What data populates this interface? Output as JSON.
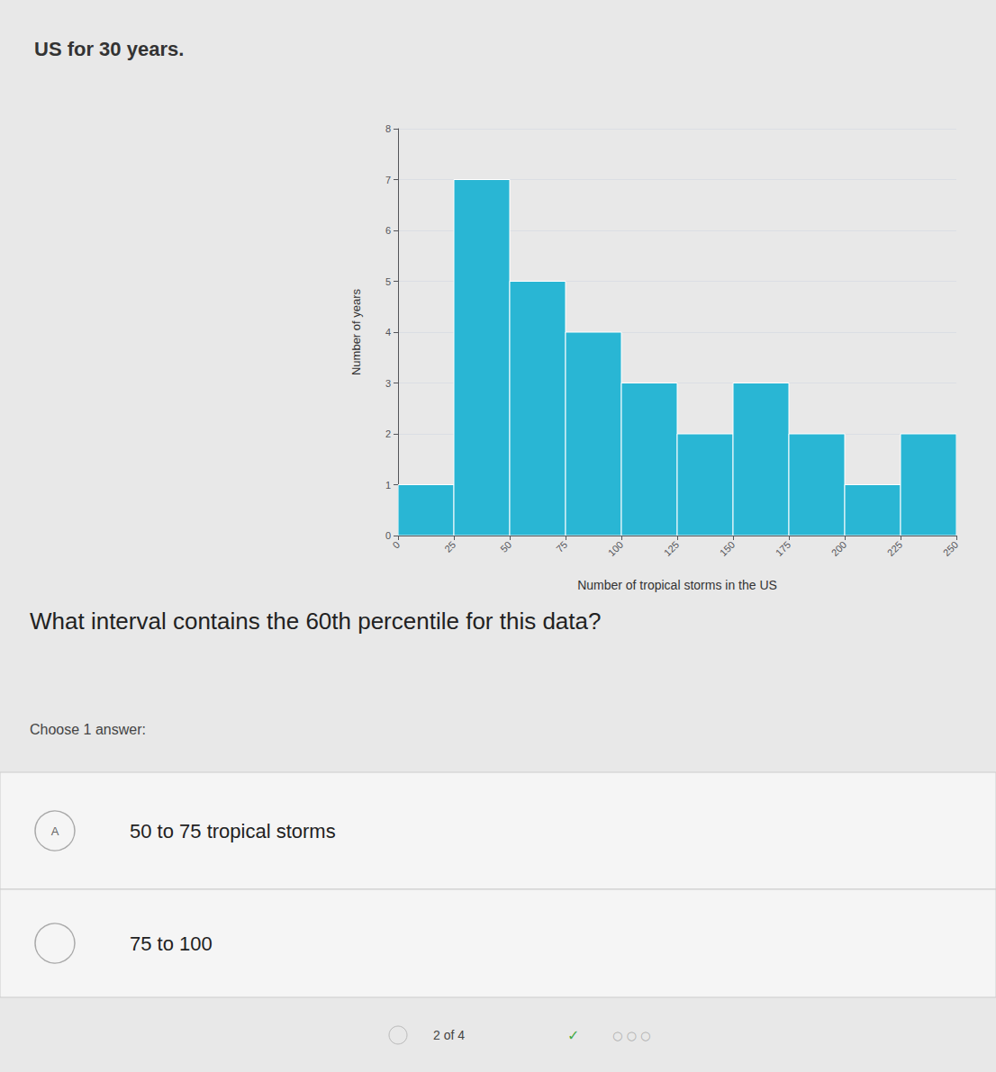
{
  "chart_data": {
    "type": "histogram",
    "title": "US for 30 years.",
    "bins": [
      0,
      25,
      50,
      75,
      100,
      125,
      150,
      175,
      200,
      225,
      250
    ],
    "values": [
      1,
      7,
      5,
      4,
      3,
      2,
      3,
      2,
      1,
      2
    ],
    "color": "#29b6d4",
    "xlabel": "Number of tropical storms in the US",
    "ylabel": "Number of years",
    "xlim": [
      0,
      250
    ],
    "xticks": [
      0,
      25,
      50,
      75,
      100,
      125,
      150,
      175,
      200,
      225,
      250
    ],
    "ylim": [
      0,
      8
    ],
    "yticks": [
      0,
      1,
      2,
      3,
      4,
      5,
      6,
      7,
      8
    ],
    "grid": true,
    "annotations": [
      "What interval contains the 60th percentile for this data?",
      "Choose 1 answer:",
      "A",
      "50 to 75 tropical storms",
      "75 to 100",
      "2 of 4",
      "✓",
      "○ ○ ○"
    ]
  }
}
